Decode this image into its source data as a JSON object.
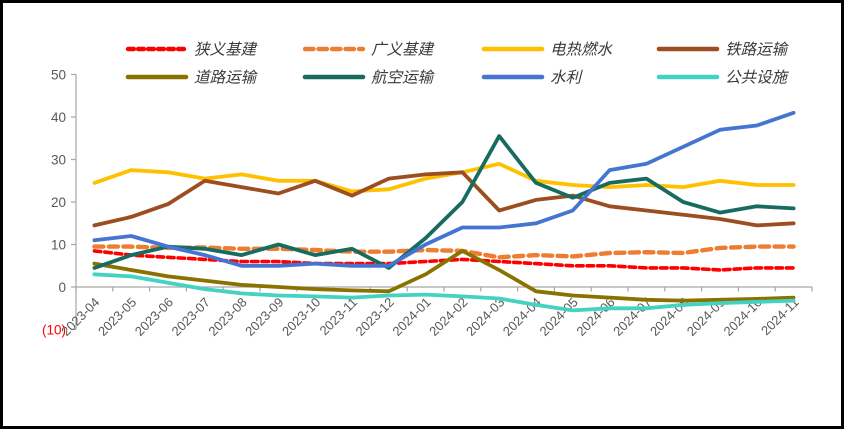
{
  "page": {
    "background": "#ffffff",
    "frame_border_color": "#000000"
  },
  "axis": {
    "line_color": "#a6a6a6",
    "tick_label_color": "#595959",
    "negative_label_color": "#ff0000"
  },
  "chart_data": {
    "type": "line",
    "title": "",
    "xlabel": "",
    "ylabel": "",
    "ylim": [
      -10,
      50
    ],
    "grid": false,
    "legend_position": "top",
    "ytick_values": [
      50,
      40,
      30,
      20,
      10,
      0,
      -10
    ],
    "ytick_labels": [
      "50",
      "40",
      "30",
      "20",
      "10",
      "0",
      "(10)"
    ],
    "categories": [
      "2023-04",
      "2023-05",
      "2023-06",
      "2023-07",
      "2023-08",
      "2023-09",
      "2023-10",
      "2023-11",
      "2023-12",
      "2024-01",
      "2024-02",
      "2024-03",
      "2024-04",
      "2024-05",
      "2024-06",
      "2024-07",
      "2024-08",
      "2024-09",
      "2024-10",
      "2024-11"
    ],
    "series": [
      {
        "name": "狭义基建",
        "color": "#ff0000",
        "dashed": true,
        "values": [
          8.5,
          7.5,
          7,
          6.5,
          6,
          6,
          5.5,
          5.5,
          5.5,
          6,
          6.5,
          6,
          5.5,
          5,
          5,
          4.5,
          4.5,
          4,
          4.5,
          4.5
        ]
      },
      {
        "name": "广义基建",
        "color": "#ed7d31",
        "dashed": true,
        "values": [
          9.5,
          9.5,
          9.2,
          9.3,
          9,
          9,
          8.7,
          8.3,
          8.3,
          8.7,
          8.5,
          7,
          7.5,
          7.2,
          8,
          8.2,
          8,
          9.2,
          9.5,
          9.5
        ]
      },
      {
        "name": "电热燃水",
        "color": "#ffc000",
        "dashed": false,
        "values": [
          24.5,
          27.5,
          27,
          25.5,
          26.5,
          25,
          25,
          22.5,
          23,
          25.5,
          27,
          29,
          25,
          24,
          23.5,
          24,
          23.5,
          25,
          24,
          24
        ]
      },
      {
        "name": "铁路运输",
        "color": "#9c4e20",
        "dashed": false,
        "values": [
          14.5,
          16.5,
          19.5,
          25,
          23.5,
          22,
          25,
          21.5,
          25.5,
          26.5,
          27,
          18,
          20.5,
          21.5,
          19,
          18,
          17,
          16,
          14.5,
          15
        ]
      },
      {
        "name": "道路运输",
        "color": "#8a7200",
        "dashed": false,
        "values": [
          5.5,
          4,
          2.5,
          1.5,
          0.5,
          0,
          -0.5,
          -0.8,
          -1,
          3,
          8.5,
          4,
          -1,
          -2,
          -2.5,
          -3,
          -3.2,
          -3,
          -2.8,
          -2.5
        ]
      },
      {
        "name": "航空运输",
        "color": "#176b5f",
        "dashed": false,
        "values": [
          4.5,
          7.5,
          9.5,
          9,
          7.5,
          10,
          7.5,
          9,
          4.5,
          11.5,
          20,
          35.5,
          24.5,
          21,
          24.5,
          25.5,
          20,
          17.5,
          19,
          18.5
        ]
      },
      {
        "name": "水利",
        "color": "#4674d1",
        "dashed": false,
        "values": [
          11,
          12,
          9.5,
          7.5,
          5,
          5,
          5.5,
          5,
          5,
          10,
          14,
          14,
          15,
          18,
          27.5,
          29,
          33,
          37,
          38,
          41
        ]
      },
      {
        "name": "公共设施",
        "color": "#44d3c3",
        "dashed": false,
        "values": [
          3,
          2.5,
          1,
          -0.5,
          -1.5,
          -2,
          -2.2,
          -2.5,
          -2,
          -1.8,
          -2.2,
          -2.7,
          -4.2,
          -5.5,
          -5,
          -5,
          -4.2,
          -3.8,
          -3.5,
          -3.2
        ]
      }
    ]
  }
}
